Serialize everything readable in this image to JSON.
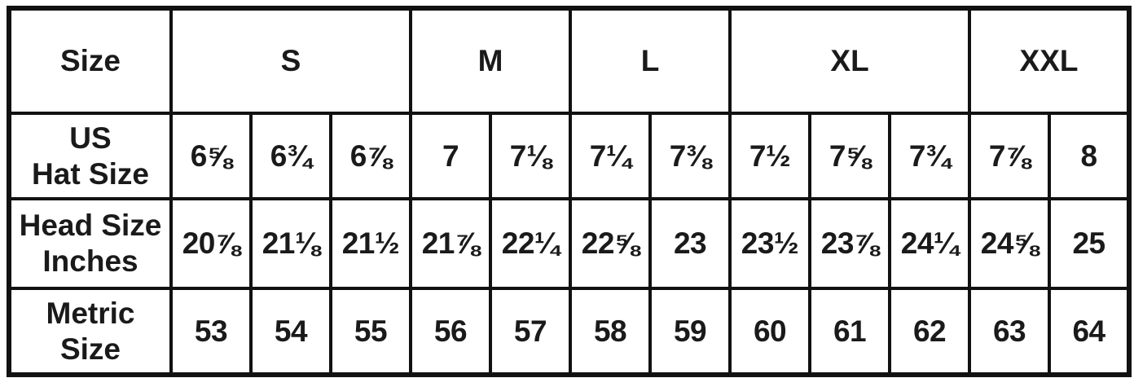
{
  "colors": {
    "border": "#111111",
    "text": "#1a1a1a",
    "background": "#ffffff"
  },
  "chart_data": {
    "type": "table",
    "header": {
      "size_label": "Size",
      "groups": [
        {
          "label": "S",
          "span": 3
        },
        {
          "label": "M",
          "span": 2
        },
        {
          "label": "L",
          "span": 2
        },
        {
          "label": "XL",
          "span": 3
        },
        {
          "label": "XXL",
          "span": 2
        }
      ]
    },
    "rows": [
      {
        "label": "US\nHat Size",
        "values": [
          "6⅝",
          "6¾",
          "6⅞",
          "7",
          "7⅛",
          "7¼",
          "7⅜",
          "7½",
          "7⅝",
          "7¾",
          "7⅞",
          "8"
        ]
      },
      {
        "label": "Head Size\nInches",
        "values": [
          "20⅞",
          "21⅛",
          "21½",
          "21⅞",
          "22¼",
          "22⅝",
          "23",
          "23½",
          "23⅞",
          "24¼",
          "24⅝",
          "25"
        ]
      },
      {
        "label": "Metric\nSize",
        "values": [
          "53",
          "54",
          "55",
          "56",
          "57",
          "58",
          "59",
          "60",
          "61",
          "62",
          "63",
          "64"
        ]
      }
    ]
  }
}
